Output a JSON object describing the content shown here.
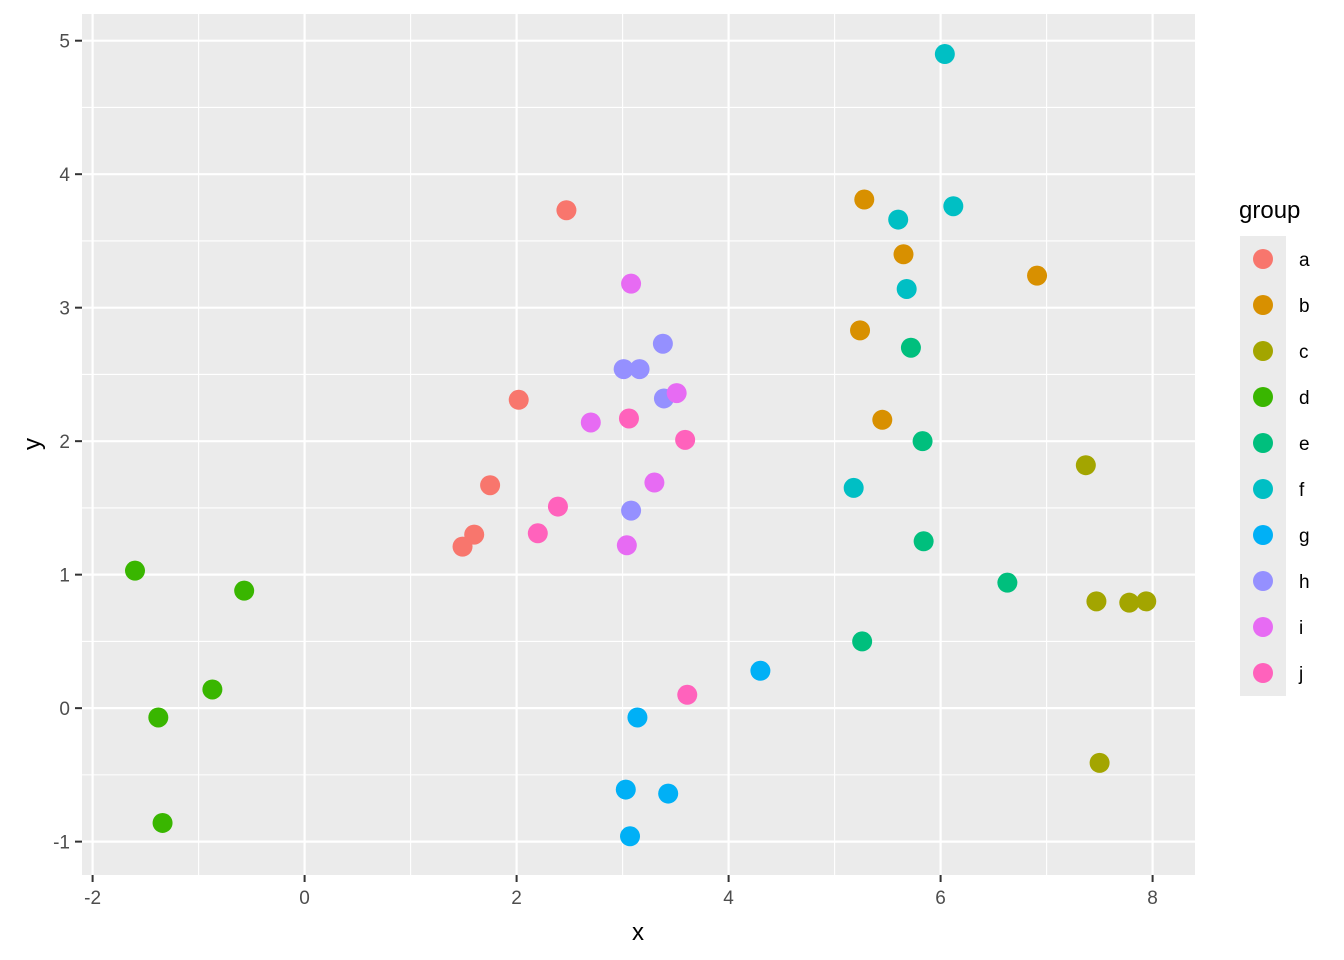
{
  "chart_data": {
    "type": "scatter",
    "title": "",
    "xlabel": "x",
    "ylabel": "y",
    "xlim": [
      -2.1,
      8.4
    ],
    "ylim": [
      -1.25,
      5.2
    ],
    "x_ticks": [
      -2,
      0,
      2,
      4,
      6,
      8
    ],
    "y_ticks": [
      -1,
      0,
      1,
      2,
      3,
      4,
      5
    ],
    "grid": true,
    "legend": {
      "title": "group",
      "position": "right"
    },
    "series": [
      {
        "name": "a",
        "color": "#F8766D",
        "points": [
          [
            2.47,
            3.73
          ],
          [
            2.02,
            2.31
          ],
          [
            1.75,
            1.67
          ],
          [
            1.6,
            1.3
          ],
          [
            1.49,
            1.21
          ]
        ]
      },
      {
        "name": "b",
        "color": "#D89000",
        "points": [
          [
            5.28,
            3.81
          ],
          [
            5.65,
            3.4
          ],
          [
            6.91,
            3.24
          ],
          [
            5.24,
            2.83
          ],
          [
            5.45,
            2.16
          ]
        ]
      },
      {
        "name": "c",
        "color": "#A3A500",
        "points": [
          [
            7.37,
            1.82
          ],
          [
            7.47,
            0.8
          ],
          [
            7.78,
            0.79
          ],
          [
            7.94,
            0.8
          ],
          [
            7.5,
            -0.41
          ]
        ]
      },
      {
        "name": "d",
        "color": "#39B600",
        "points": [
          [
            -1.6,
            1.03
          ],
          [
            -0.57,
            0.88
          ],
          [
            -0.87,
            0.14
          ],
          [
            -1.38,
            -0.07
          ],
          [
            -1.34,
            -0.86
          ]
        ]
      },
      {
        "name": "e",
        "color": "#00BF7D",
        "points": [
          [
            5.72,
            2.7
          ],
          [
            5.83,
            2.0
          ],
          [
            5.84,
            1.25
          ],
          [
            6.63,
            0.94
          ],
          [
            5.26,
            0.5
          ]
        ]
      },
      {
        "name": "f",
        "color": "#00BFC4",
        "points": [
          [
            6.04,
            4.9
          ],
          [
            6.12,
            3.76
          ],
          [
            5.6,
            3.66
          ],
          [
            5.68,
            3.14
          ],
          [
            5.18,
            1.65
          ]
        ]
      },
      {
        "name": "g",
        "color": "#00B0F6",
        "points": [
          [
            4.3,
            0.28
          ],
          [
            3.14,
            -0.07
          ],
          [
            3.03,
            -0.61
          ],
          [
            3.43,
            -0.64
          ],
          [
            3.07,
            -0.96
          ]
        ]
      },
      {
        "name": "h",
        "color": "#9590FF",
        "points": [
          [
            3.38,
            2.73
          ],
          [
            3.01,
            2.54
          ],
          [
            3.16,
            2.54
          ],
          [
            3.39,
            2.32
          ],
          [
            3.08,
            1.48
          ]
        ]
      },
      {
        "name": "i",
        "color": "#E76BF3",
        "points": [
          [
            3.08,
            3.18
          ],
          [
            3.51,
            2.36
          ],
          [
            2.7,
            2.14
          ],
          [
            3.3,
            1.69
          ],
          [
            3.04,
            1.22
          ]
        ]
      },
      {
        "name": "j",
        "color": "#FF62BC",
        "points": [
          [
            3.06,
            2.17
          ],
          [
            3.59,
            2.01
          ],
          [
            2.39,
            1.51
          ],
          [
            2.2,
            1.31
          ],
          [
            3.61,
            0.1
          ]
        ]
      }
    ]
  }
}
